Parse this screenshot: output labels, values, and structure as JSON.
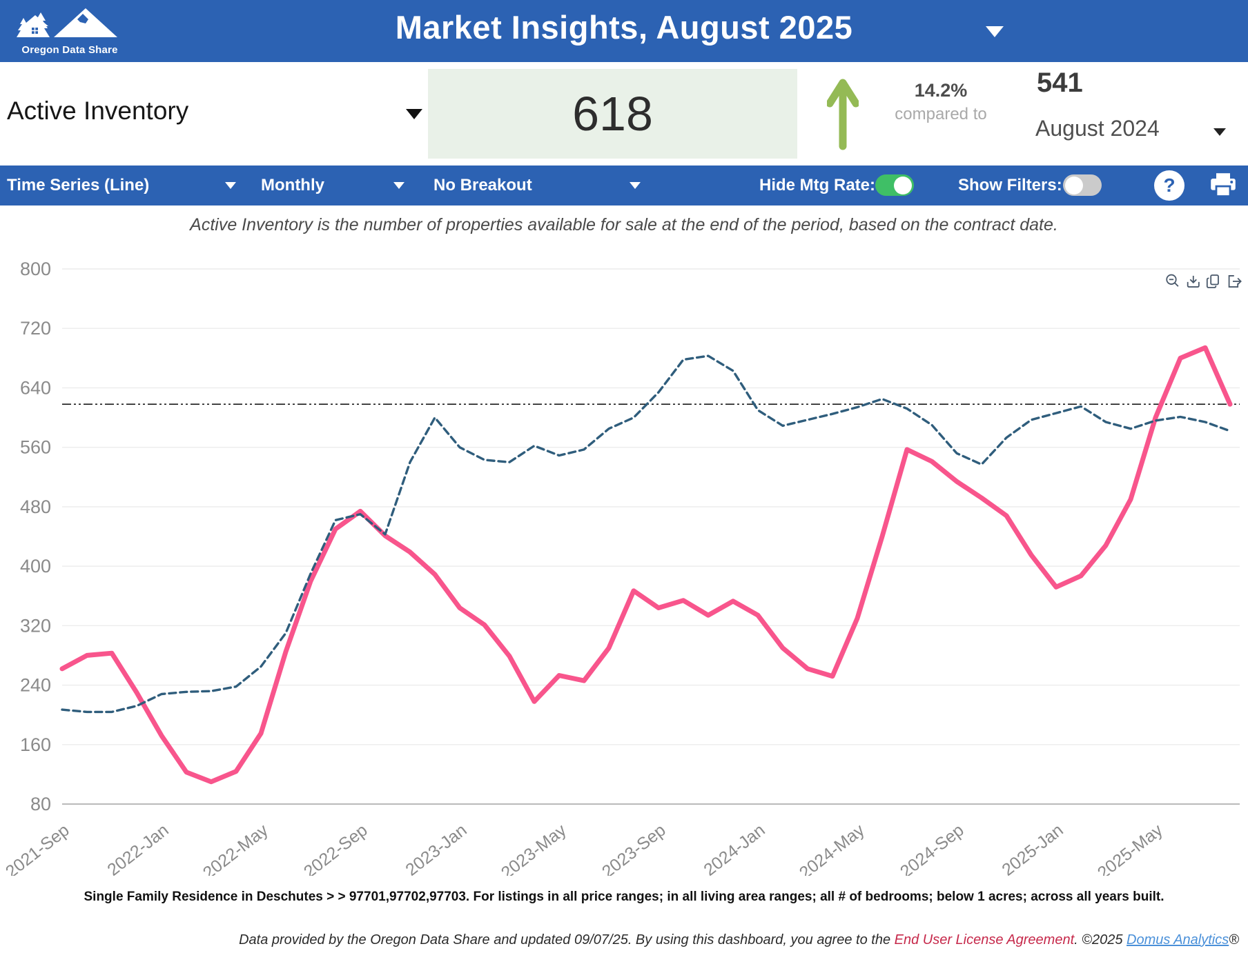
{
  "header": {
    "logo_text": "Oregon Data Share",
    "title": "Market Insights, August 2025"
  },
  "kpi": {
    "metric_label": "Active Inventory",
    "value": "618",
    "change_pct": "14.2%",
    "change_direction": "up",
    "compare_text": "compared to",
    "compare_value": "541",
    "compare_period": "August 2024"
  },
  "toolbar": {
    "chart_type": "Time Series (Line)",
    "frequency": "Monthly",
    "breakout": "No Breakout",
    "hide_mtg_rate_label": "Hide Mtg Rate:",
    "hide_mtg_rate_on": true,
    "show_filters_label": "Show Filters:",
    "show_filters_on": false,
    "help_label": "?"
  },
  "subtitle": "Active Inventory is the number of properties available for sale at the end of the period, based on the contract date.",
  "chart_data": {
    "type": "line",
    "title": "",
    "xlabel": "",
    "ylabel": "",
    "ylim": [
      80,
      800
    ],
    "yticks": [
      80,
      160,
      240,
      320,
      400,
      480,
      560,
      640,
      720,
      800
    ],
    "grid": "horizontal",
    "legend": "none",
    "months": [
      "2021-Sep",
      "2021-Oct",
      "2021-Nov",
      "2021-Dec",
      "2022-Jan",
      "2022-Feb",
      "2022-Mar",
      "2022-Apr",
      "2022-May",
      "2022-Jun",
      "2022-Jul",
      "2022-Aug",
      "2022-Sep",
      "2022-Oct",
      "2022-Nov",
      "2022-Dec",
      "2023-Jan",
      "2023-Feb",
      "2023-Mar",
      "2023-Apr",
      "2023-May",
      "2023-Jun",
      "2023-Jul",
      "2023-Aug",
      "2023-Sep",
      "2023-Oct",
      "2023-Nov",
      "2023-Dec",
      "2024-Jan",
      "2024-Feb",
      "2024-Mar",
      "2024-Apr",
      "2024-May",
      "2024-Jun",
      "2024-Jul",
      "2024-Aug",
      "2024-Sep",
      "2024-Oct",
      "2024-Nov",
      "2024-Dec",
      "2025-Jan",
      "2025-Feb",
      "2025-Mar",
      "2025-Apr",
      "2025-May",
      "2025-Jun",
      "2025-Jul",
      "2025-Aug"
    ],
    "xtick_labels": [
      "2021-Sep",
      "2022-Jan",
      "2022-May",
      "2022-Sep",
      "2023-Jan",
      "2023-May",
      "2023-Sep",
      "2024-Jan",
      "2024-May",
      "2024-Sep",
      "2025-Jan",
      "2025-May"
    ],
    "series": [
      {
        "name": "Active Inventory",
        "style": "solid",
        "color": "#f8558c",
        "values": [
          262,
          280,
          283,
          230,
          172,
          123,
          110,
          124,
          175,
          285,
          380,
          450,
          474,
          441,
          419,
          389,
          344,
          321,
          279,
          218,
          253,
          246,
          290,
          367,
          344,
          354,
          334,
          353,
          334,
          290,
          262,
          252,
          330,
          440,
          557,
          541,
          514,
          492,
          468,
          415,
          372,
          387,
          428,
          490,
          600,
          680,
          694,
          618
        ]
      },
      {
        "name": "Mtg Rate",
        "style": "dashed",
        "color": "#2f5d7c",
        "values": [
          207,
          204,
          204,
          212,
          228,
          231,
          232,
          238,
          265,
          310,
          390,
          462,
          470,
          443,
          540,
          600,
          560,
          543,
          540,
          562,
          549,
          557,
          585,
          600,
          634,
          678,
          683,
          663,
          610,
          589,
          597,
          605,
          614,
          625,
          612,
          590,
          552,
          537,
          573,
          597,
          606,
          615,
          594,
          585,
          596,
          601,
          594,
          582
        ]
      }
    ],
    "reference_line": {
      "value": 618,
      "style": "dash-dot-dot",
      "color": "#1a1a1a"
    }
  },
  "footer": {
    "filters": "Single Family Residence in Deschutes > > 97701,97702,97703. For listings in all price ranges; in all living area ranges; all # of bedrooms; below 1 acres; across all years built.",
    "attribution_prefix": "Data provided by the Oregon Data Share and updated 09/07/25.  By using this dashboard, you agree to the ",
    "eula_link": "End User License Agreement",
    "attribution_mid": ".  ©2025 ",
    "brand_link": "Domus Analytics",
    "registered": "®"
  },
  "colors": {
    "header_blue": "#2c62b3",
    "pink_line": "#f8558c",
    "navy_dashed": "#2f5d7c",
    "toggle_on_green": "#3fbf66",
    "toggle_off_gray": "#cbcbcb",
    "kpi_box_bg": "#e9f1e8",
    "up_arrow_green": "#94ba55",
    "gridline": "#ececec",
    "tick_text": "#8a8a8a"
  }
}
